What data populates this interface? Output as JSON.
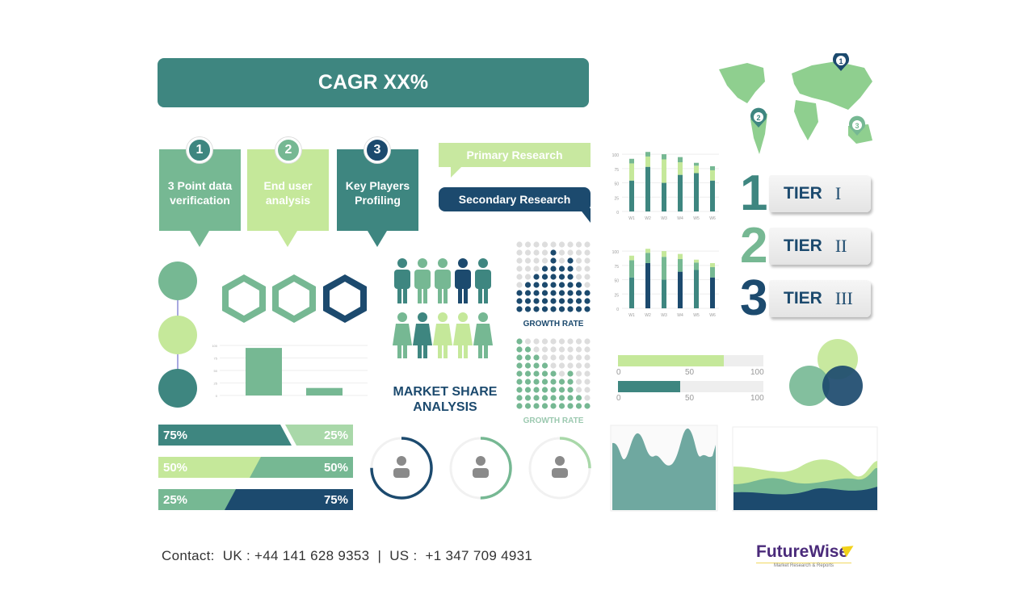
{
  "banner": {
    "title": "CAGR XX%"
  },
  "steps": [
    {
      "number": "1",
      "label": "3 Point data verification",
      "color": "#76b893",
      "badge": "#3e8680"
    },
    {
      "number": "2",
      "label": "End user analysis",
      "color": "#c5e89a",
      "badge": "#76b893"
    },
    {
      "number": "3",
      "label": "Key Players Profiling",
      "color": "#3e8680",
      "badge": "#1c4a6e"
    }
  ],
  "research": {
    "primary": "Primary Research",
    "secondary": "Secondary Research"
  },
  "map": {
    "pins": [
      "1",
      "2",
      "3"
    ]
  },
  "tiers": [
    {
      "number": "1",
      "label": "TIER",
      "roman": "I",
      "color": "#3e8680"
    },
    {
      "number": "2",
      "label": "TIER",
      "roman": "II",
      "color": "#76b893"
    },
    {
      "number": "3",
      "label": "TIER",
      "roman": "III",
      "color": "#1c4a6e"
    }
  ],
  "stacked_charts": [
    {
      "categories": [
        "W1",
        "W2",
        "W3",
        "W4",
        "W5",
        "W6"
      ],
      "yticks": [
        "0",
        "25",
        "50",
        "75",
        "100"
      ],
      "series": [
        {
          "values": [
            54,
            78,
            50,
            64,
            67,
            54
          ],
          "color": "#3e8680"
        },
        {
          "values": [
            30,
            18,
            41,
            22,
            13,
            18
          ],
          "color": "#c5e89a"
        },
        {
          "values": [
            8,
            8,
            9,
            9,
            5,
            7
          ],
          "color": "#76b893"
        }
      ]
    },
    {
      "categories": [
        "W1",
        "W2",
        "W3",
        "W4",
        "W5",
        "W6"
      ],
      "yticks": [
        "0",
        "25",
        "50",
        "75",
        "100"
      ],
      "series": [
        {
          "values": [
            54,
            79,
            50,
            64,
            67,
            54
          ],
          "colors": [
            "#3e8680",
            "#1c4a6e",
            "#3e8680",
            "#1c4a6e",
            "#3e8680",
            "#1c4a6e"
          ]
        },
        {
          "values": [
            30,
            18,
            40,
            22,
            13,
            18
          ],
          "color": "#76b893"
        },
        {
          "values": [
            8,
            7,
            10,
            9,
            5,
            7
          ],
          "color": "#c5e89a"
        }
      ]
    }
  ],
  "simple_bar": {
    "values": [
      95,
      15
    ],
    "yticks": [
      "0",
      "25",
      "50",
      "75",
      "100"
    ],
    "color": "#76b893"
  },
  "market_share": {
    "title": "MARKET SHARE ANALYSIS"
  },
  "growth": [
    {
      "label": "GROWTH RATE",
      "levels": [
        3,
        4,
        5,
        6,
        8,
        6,
        7,
        4,
        3
      ],
      "color": "#1c4a6e"
    },
    {
      "label": "GROWTH RATE",
      "levels": [
        9,
        8,
        7,
        6,
        5,
        4,
        5,
        2,
        1
      ],
      "color": "#76b893"
    }
  ],
  "split_bars": [
    {
      "left": "75%",
      "right": "25%",
      "lc": "#3e8680",
      "rc": "#a9d8a9",
      "left_value": 75
    },
    {
      "left": "50%",
      "right": "50%",
      "lc": "#c5e89a",
      "rc": "#76b893",
      "left_value": 50
    },
    {
      "left": "25%",
      "right": "75%",
      "lc": "#76b893",
      "rc": "#1c4a6e",
      "left_value": 25
    }
  ],
  "rings": [
    {
      "value": 75,
      "color": "#1c4a6e"
    },
    {
      "value": 50,
      "color": "#76b893"
    },
    {
      "value": 25,
      "color": "#a9d8a9"
    }
  ],
  "progress": [
    {
      "value": 73,
      "color": "#c5e89a",
      "ticks": [
        "0",
        "50",
        "100"
      ]
    },
    {
      "value": 43,
      "color": "#3e8680",
      "ticks": [
        "0",
        "50",
        "100"
      ]
    }
  ],
  "contact": {
    "label": "Contact:",
    "uk": "UK : +44 141 628 9353",
    "sep": "|",
    "us": "US :  +1 347 709 4931"
  },
  "logo": {
    "name": "FutureWise",
    "tagline": "Market Research & Reports"
  }
}
